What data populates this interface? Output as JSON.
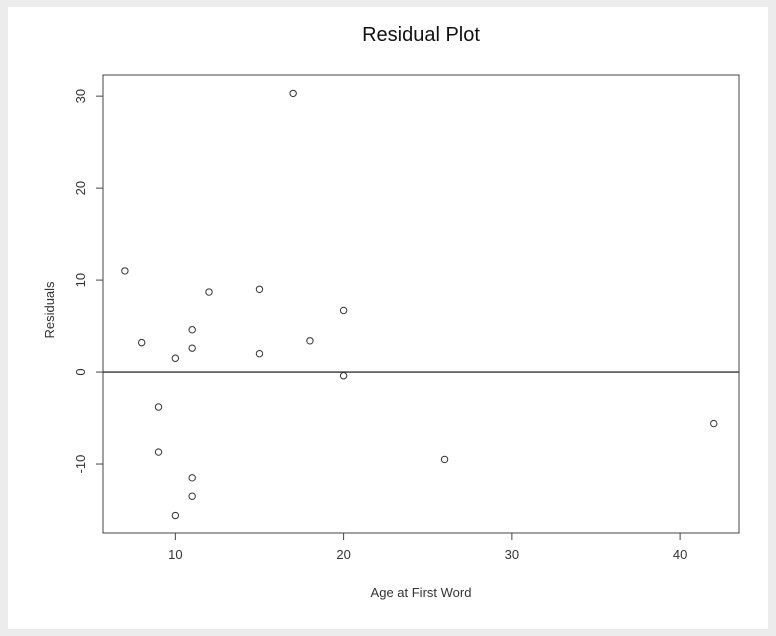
{
  "chart_data": {
    "type": "scatter",
    "title": "Residual Plot",
    "xlabel": "Age at First Word",
    "ylabel": "Residuals",
    "xlim": [
      5.7,
      43.5
    ],
    "ylim": [
      -17.5,
      32.3
    ],
    "xticks": [
      10,
      20,
      30,
      40
    ],
    "yticks": [
      -10,
      0,
      10,
      20,
      30
    ],
    "xtick_labels": [
      "10",
      "20",
      "30",
      "40"
    ],
    "ytick_labels": [
      "-10",
      "0",
      "10",
      "20",
      "30"
    ],
    "reference_line_y": 0,
    "grid": false,
    "legend": "none",
    "points": [
      {
        "x": 7,
        "y": 11.0
      },
      {
        "x": 8,
        "y": 3.2
      },
      {
        "x": 9,
        "y": -3.8
      },
      {
        "x": 9,
        "y": -8.7
      },
      {
        "x": 10,
        "y": 1.5
      },
      {
        "x": 10,
        "y": -15.6
      },
      {
        "x": 11,
        "y": 4.6
      },
      {
        "x": 11,
        "y": 2.6
      },
      {
        "x": 11,
        "y": -11.5
      },
      {
        "x": 11,
        "y": -13.5
      },
      {
        "x": 12,
        "y": 8.7
      },
      {
        "x": 15,
        "y": 9.0
      },
      {
        "x": 15,
        "y": 2.0
      },
      {
        "x": 17,
        "y": 30.3
      },
      {
        "x": 18,
        "y": 3.4
      },
      {
        "x": 20,
        "y": 6.7
      },
      {
        "x": 20,
        "y": -0.4
      },
      {
        "x": 26,
        "y": -9.5
      },
      {
        "x": 42,
        "y": -5.6
      }
    ]
  }
}
